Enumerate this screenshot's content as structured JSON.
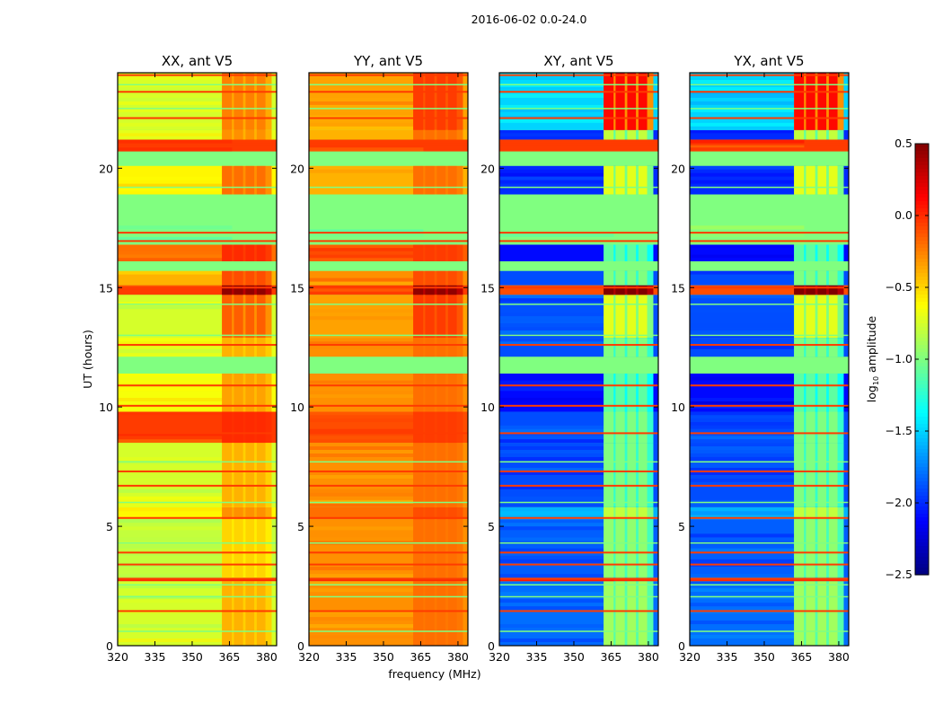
{
  "chart_data": {
    "type": "heatmap",
    "title": "2016-06-02 0.0-24.0",
    "xlabel": "frequency (MHz)",
    "ylabel": "UT (hours)",
    "colorbar_label_main": "log",
    "colorbar_label_sub": "10",
    "colorbar_label_rest": " amplitude",
    "colormap": "jet",
    "clim": [
      -2.5,
      0.5
    ],
    "colorbar_ticks": [
      0.5,
      0.0,
      -0.5,
      -1.0,
      -1.5,
      -2.0,
      -2.5
    ],
    "colorbar_tick_labels": [
      "0.5",
      "0.0",
      "−0.5",
      "−1.0",
      "−1.5",
      "−2.0",
      "−2.5"
    ],
    "xlim": [
      320,
      384
    ],
    "ylim": [
      0,
      24
    ],
    "xticks": [
      320,
      335,
      350,
      365,
      380
    ],
    "yticks": [
      0,
      5,
      10,
      15,
      20
    ],
    "panels": [
      {
        "title": "XX, ant V5"
      },
      {
        "title": "YY, ant V5"
      },
      {
        "title": "XY, ant V5"
      },
      {
        "title": "YX, ant V5"
      }
    ],
    "flagged_value": -1.0,
    "flagged_bands": [
      [
        11.4,
        12.1
      ],
      [
        15.7,
        16.1
      ],
      [
        17.6,
        18.9
      ],
      [
        20.1,
        20.7
      ]
    ],
    "rfi_region": [
      362,
      382
    ],
    "rfi_channels": [
      [
        362,
        366
      ],
      [
        366.8,
        370.5
      ],
      [
        371.5,
        375
      ],
      [
        376,
        379.5
      ]
    ],
    "segments": [
      {
        "t": [
          0,
          2.7
        ],
        "levels": [
          -0.75,
          -0.3,
          -1.8,
          -1.8
        ],
        "rfi": [
          0.35,
          0.1,
          0.9,
          0.9
        ]
      },
      {
        "t": [
          2.7,
          2.85
        ],
        "levels": [
          0.0,
          0.0,
          0.0,
          0.0
        ],
        "rfi": [
          0,
          0,
          0,
          0
        ]
      },
      {
        "t": [
          2.85,
          5.3
        ],
        "levels": [
          -0.8,
          -0.3,
          -1.85,
          -1.85
        ],
        "rfi": [
          0.3,
          0.1,
          0.9,
          0.9
        ]
      },
      {
        "t": [
          5.3,
          5.8
        ],
        "levels": [
          -0.6,
          -0.2,
          -1.6,
          -1.6
        ],
        "rfi": [
          0.3,
          0.1,
          0.8,
          0.8
        ]
      },
      {
        "t": [
          5.8,
          8.5
        ],
        "levels": [
          -0.75,
          -0.3,
          -1.9,
          -1.9
        ],
        "rfi": [
          0.35,
          0.1,
          0.9,
          0.9
        ]
      },
      {
        "t": [
          8.5,
          9.8
        ],
        "levels": [
          -0.05,
          -0.1,
          -1.9,
          -1.9
        ],
        "rfi": [
          0.05,
          0.05,
          0.9,
          0.9
        ]
      },
      {
        "t": [
          9.8,
          11.4
        ],
        "levels": [
          -0.65,
          -0.3,
          -2.1,
          -2.1
        ],
        "rfi": [
          0.3,
          0.1,
          1.0,
          1.0
        ]
      },
      {
        "t": [
          12.1,
          12.9
        ],
        "levels": [
          -0.7,
          -0.3,
          -1.9,
          -1.9
        ],
        "rfi": [
          0.3,
          0.1,
          0.9,
          0.9
        ]
      },
      {
        "t": [
          12.9,
          14.7
        ],
        "levels": [
          -0.75,
          -0.35,
          -1.9,
          -1.9
        ],
        "rfi": [
          0.6,
          0.3,
          1.2,
          1.2
        ]
      },
      {
        "t": [
          14.7,
          15.1
        ],
        "levels": [
          -0.05,
          -0.05,
          -0.1,
          -0.1
        ],
        "rfi": [
          0.5,
          0.5,
          0.6,
          0.6
        ]
      },
      {
        "t": [
          15.1,
          15.7
        ],
        "levels": [
          -0.4,
          -0.3,
          -1.9,
          -1.9
        ],
        "rfi": [
          0.3,
          0.2,
          0.9,
          0.9
        ]
      },
      {
        "t": [
          16.1,
          16.8
        ],
        "levels": [
          -0.2,
          -0.15,
          -2.1,
          -2.1
        ],
        "rfi": [
          0.2,
          0.1,
          1.0,
          1.0
        ]
      },
      {
        "t": [
          16.8,
          17.6
        ],
        "levels": [
          -1.0,
          -1.0,
          -1.0,
          -1.0
        ],
        "rfi": [
          0,
          0,
          0,
          0
        ]
      },
      {
        "t": [
          18.9,
          20.1
        ],
        "levels": [
          -0.6,
          -0.4,
          -2.0,
          -2.0
        ],
        "rfi": [
          0.4,
          0.2,
          1.3,
          1.3
        ]
      },
      {
        "t": [
          20.7,
          21.2
        ],
        "levels": [
          -0.05,
          -0.05,
          -0.05,
          -0.05
        ],
        "rfi": [
          0,
          0,
          0,
          0
        ]
      },
      {
        "t": [
          21.2,
          21.6
        ],
        "levels": [
          -0.7,
          -0.4,
          -2.0,
          -2.0
        ],
        "rfi": [
          0.4,
          0.2,
          1.2,
          1.2
        ]
      },
      {
        "t": [
          21.6,
          24
        ],
        "levels": [
          -0.75,
          -0.35,
          -1.5,
          -1.5
        ],
        "rfi": [
          0.5,
          0.3,
          1.6,
          1.6
        ]
      }
    ],
    "orange_lines": [
      1.45,
      2.8,
      3.4,
      3.9,
      5.35,
      6.7,
      7.3,
      8.9,
      10.05,
      10.9,
      12.6,
      15.0,
      16.95,
      17.3,
      21.0,
      22.1,
      23.2,
      23.9
    ],
    "green_lines": [
      0.6,
      2.05,
      2.55,
      4.3,
      6.0,
      7.7,
      13.0,
      14.3,
      19.2,
      22.5,
      23.5
    ]
  }
}
